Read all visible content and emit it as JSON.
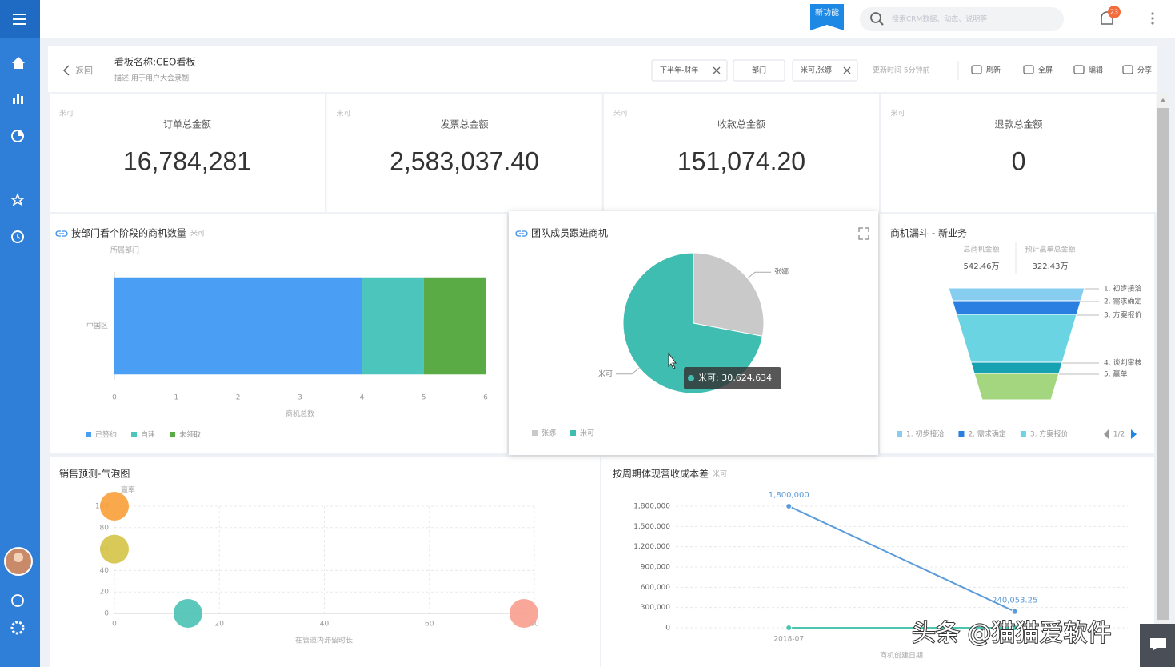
{
  "topbar": {
    "badge": "新功能",
    "search_placeholder": "搜索CRM数据、动态、说明等",
    "notifications": "23"
  },
  "board": {
    "back": "返回",
    "title": "看板名称:CEO看板",
    "description": "描述:用于用户大会录制",
    "filters": [
      {
        "label": "下半年-财年",
        "removable": true
      },
      {
        "label": "部门",
        "removable": false
      },
      {
        "label": "米可,张娜",
        "removable": true
      }
    ],
    "updated": "更新时间 5分钟前",
    "actions": [
      "刷新",
      "全屏",
      "编辑",
      "分享"
    ]
  },
  "kpis": [
    {
      "owner": "米可",
      "label": "订单总金额",
      "value": "16,784,281"
    },
    {
      "owner": "米可",
      "label": "发票总金额",
      "value": "2,583,037.40"
    },
    {
      "owner": "米可",
      "label": "收款总金额",
      "value": "151,074.20"
    },
    {
      "owner": "米可",
      "label": "退款总金额",
      "value": "0"
    }
  ],
  "charts": [
    {
      "type": "bar",
      "orientation": "horizontal",
      "stacked": true,
      "title": "按部门看个阶段的商机数量",
      "tag": "米可",
      "ylabel": "所属部门",
      "xlabel": "商机总数",
      "categories": [
        "中国区"
      ],
      "series": [
        {
          "name": "已签约",
          "color": "#4a9ff5",
          "values": [
            4
          ]
        },
        {
          "name": "自建",
          "color": "#4cc5bd",
          "values": [
            1
          ]
        },
        {
          "name": "未领取",
          "color": "#5aab46",
          "values": [
            1
          ]
        }
      ],
      "xlim": [
        0,
        6
      ],
      "xticks": [
        0,
        1,
        2,
        3,
        4,
        5,
        6
      ],
      "legend": "bottom-left"
    },
    {
      "type": "pie",
      "title": "团队成员跟进商机",
      "categories": [
        "张娜",
        "米可"
      ],
      "values": [
        11900000,
        30624634
      ],
      "colors": [
        "#c9c9c9",
        "#40bdb1"
      ],
      "tooltip": "米可: 30,624,634",
      "legend": "bottom-left"
    },
    {
      "type": "funnel",
      "title": "商机漏斗 - 新业务",
      "stats": [
        {
          "label": "总商机金额",
          "value": "542.46万"
        },
        {
          "label": "预计赢单总金额",
          "value": "322.43万"
        }
      ],
      "categories": [
        "1. 初步接洽",
        "2. 需求确定",
        "3. 方案报价",
        "4. 谈判审核",
        "5. 赢单"
      ],
      "values": [
        16,
        17,
        60,
        14,
        33
      ],
      "colors": [
        "#87cdf0",
        "#2b7fe0",
        "#6ad4e3",
        "#17a2b4",
        "#a3d67f"
      ],
      "legend_page": "1/2",
      "legend": "bottom-left"
    },
    {
      "type": "scatter",
      "title": "销售预测-气泡图",
      "ylabel": "赢率",
      "xlabel": "在管道内滞留时长",
      "x": [
        0,
        0,
        14,
        78
      ],
      "y": [
        100,
        60,
        0,
        0
      ],
      "colors": [
        "#f9a13c",
        "#d6c44b",
        "#4ec3b5",
        "#f9a090"
      ],
      "xlim": [
        0,
        80
      ],
      "ylim": [
        0,
        100
      ],
      "xticks": [
        0,
        20,
        40,
        60,
        80
      ],
      "yticks": [
        0,
        20,
        40,
        60,
        80,
        100
      ],
      "grid": true
    },
    {
      "type": "line",
      "title": "按周期体现营收成本差",
      "tag": "米可",
      "xlabel": "商机创建日期",
      "categories": [
        "2018-07",
        null
      ],
      "series": [
        {
          "color": "#5b9bd9",
          "values": [
            1800000,
            240053.25
          ],
          "value_labels": [
            "1,800,000",
            "240,053.25"
          ]
        },
        {
          "color": "#4cc5b0",
          "values": [
            0,
            0
          ]
        }
      ],
      "ylim": [
        0,
        1800000
      ],
      "yticks": [
        0,
        {
          "value": 300000,
          "label": "300,000"
        },
        {
          "value": 600000,
          "label": "600,000"
        },
        {
          "value": 900000,
          "label": "900,000"
        },
        {
          "value": 1200000,
          "label": "1,200,000"
        },
        {
          "value": 1500000,
          "label": "1,500,000"
        },
        {
          "value": 1800000,
          "label": "1,800,000"
        }
      ],
      "grid": true
    }
  ],
  "watermark": "头条 @猫猫爱软件"
}
